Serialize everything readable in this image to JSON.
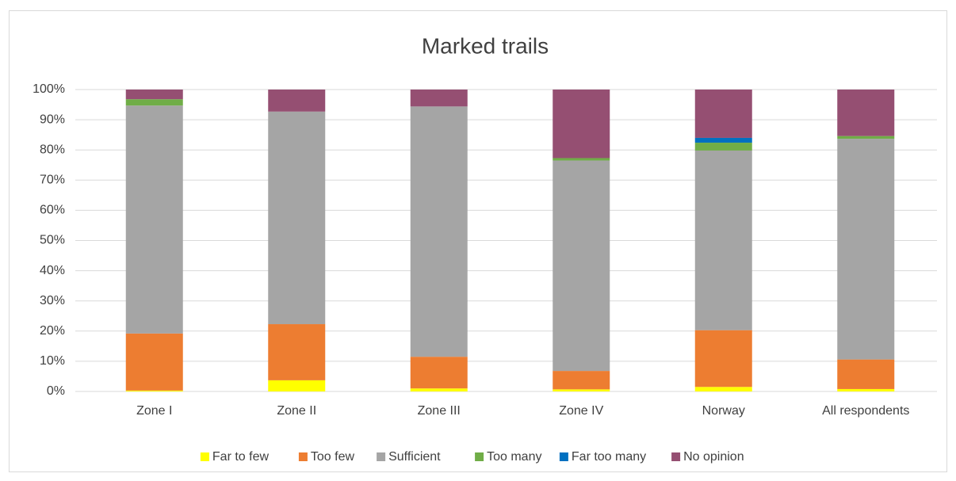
{
  "chart_data": {
    "type": "stacked_bar",
    "title": "Marked trails",
    "categories": [
      "Zone I",
      "Zone II",
      "Zone III",
      "Zone IV",
      "Norway",
      "All respondents"
    ],
    "series": [
      {
        "name": "Far to few",
        "color": "#ffff00",
        "values": [
          0.3,
          3.7,
          1.0,
          0.7,
          1.5,
          0.8
        ]
      },
      {
        "name": "Too few",
        "color": "#ed7d31",
        "values": [
          18.9,
          18.6,
          10.5,
          6.1,
          18.8,
          9.8
        ]
      },
      {
        "name": "Sufficient",
        "color": "#a5a5a5",
        "values": [
          75.5,
          70.4,
          82.9,
          69.7,
          59.5,
          73.1
        ]
      },
      {
        "name": "Too many",
        "color": "#70ad47",
        "values": [
          2.1,
          0,
          0,
          0.8,
          2.6,
          0.9
        ]
      },
      {
        "name": "Far too many",
        "color": "#0070c0",
        "values": [
          0,
          0,
          0,
          0,
          1.6,
          0
        ]
      },
      {
        "name": "No opinion",
        "color": "#954f72",
        "values": [
          3.2,
          7.3,
          5.6,
          22.7,
          16.0,
          15.4
        ]
      }
    ],
    "ylim": [
      0,
      100
    ],
    "yticks": [
      {
        "value": 0,
        "label": "0%"
      },
      {
        "value": 10,
        "label": "10%"
      },
      {
        "value": 20,
        "label": "20%"
      },
      {
        "value": 30,
        "label": "30%"
      },
      {
        "value": 40,
        "label": "40%"
      },
      {
        "value": 50,
        "label": "50%"
      },
      {
        "value": 60,
        "label": "60%"
      },
      {
        "value": 70,
        "label": "70%"
      },
      {
        "value": 80,
        "label": "80%"
      },
      {
        "value": 90,
        "label": "90%"
      },
      {
        "value": 100,
        "label": "100%"
      }
    ],
    "grid": true,
    "legend": "bottom"
  }
}
